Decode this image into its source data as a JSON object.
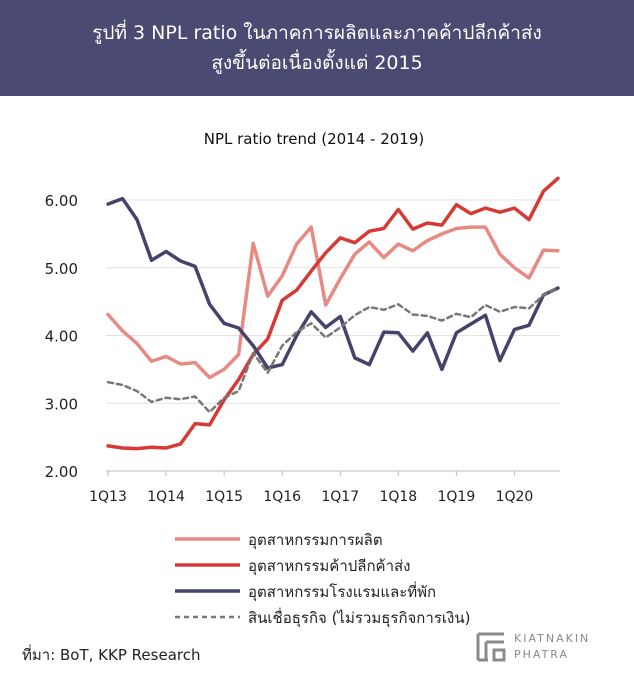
{
  "header": {
    "line1": "รูปที่ 3 NPL ratio ในภาคการผลิตและภาคค้าปลีกค้าส่ง",
    "line2": "สูงขึ้นต่อเนื่องตั้งแต่ 2015"
  },
  "source": "ที่มา: BoT, KKP Research",
  "logo": {
    "line1": "KIATNAKIN",
    "line2": "PHATRA"
  },
  "chart_data": {
    "type": "line",
    "title": "NPL ratio trend (2014 - 2019)",
    "xlabel": "",
    "ylabel": "",
    "ylim": [
      2.0,
      6.3
    ],
    "yticks": [
      2.0,
      3.0,
      4.0,
      5.0,
      6.0
    ],
    "ytick_labels": [
      "2.00",
      "3.00",
      "4.00",
      "5.00",
      "6.00"
    ],
    "x_tick_labels": [
      "1Q13",
      "1Q14",
      "1Q15",
      "1Q16",
      "1Q17",
      "1Q18",
      "1Q19",
      "1Q20"
    ],
    "x_tick_indices": [
      0,
      4,
      8,
      12,
      16,
      20,
      24,
      28
    ],
    "n_points": 32,
    "series": [
      {
        "name": "อุตสาหกรรมการผลิต",
        "color": "#e88a84",
        "dash": false,
        "values": [
          4.31,
          4.07,
          3.88,
          3.62,
          3.69,
          3.58,
          3.6,
          3.38,
          3.5,
          3.72,
          5.36,
          4.58,
          4.88,
          5.35,
          5.6,
          4.45,
          4.84,
          5.2,
          5.38,
          5.15,
          5.35,
          5.25,
          5.4,
          5.5,
          5.58,
          5.6,
          5.6,
          5.2,
          5.0,
          4.85,
          5.26,
          5.25
        ]
      },
      {
        "name": "อุตสาหกรรมค้าปลีกค้าส่ง",
        "color": "#d63a35",
        "dash": false,
        "values": [
          2.37,
          2.34,
          2.33,
          2.35,
          2.34,
          2.4,
          2.7,
          2.68,
          3.05,
          3.35,
          3.72,
          3.95,
          4.52,
          4.67,
          4.95,
          5.22,
          5.44,
          5.37,
          5.54,
          5.58,
          5.86,
          5.57,
          5.66,
          5.63,
          5.93,
          5.8,
          5.88,
          5.82,
          5.88,
          5.71,
          6.13,
          6.32
        ]
      },
      {
        "name": "อุตสาหกรรมโรงแรมและที่พัก",
        "color": "#44436b",
        "dash": false,
        "values": [
          5.94,
          6.02,
          5.71,
          5.11,
          5.24,
          5.1,
          5.02,
          4.46,
          4.18,
          4.11,
          3.85,
          3.52,
          3.57,
          4.0,
          4.35,
          4.12,
          4.28,
          3.67,
          3.57,
          4.05,
          4.04,
          3.77,
          4.04,
          3.5,
          4.04,
          4.17,
          4.3,
          3.63,
          4.09,
          4.15,
          4.6,
          4.7
        ]
      },
      {
        "name": "สินเชื่อธุรกิจ (ไม่รวมธุรกิจการเงิน)",
        "color": "#777777",
        "dash": true,
        "values": [
          3.31,
          3.27,
          3.18,
          3.02,
          3.08,
          3.06,
          3.1,
          2.87,
          3.08,
          3.18,
          3.74,
          3.45,
          3.85,
          4.05,
          4.18,
          3.97,
          4.12,
          4.3,
          4.42,
          4.38,
          4.46,
          4.31,
          4.29,
          4.22,
          4.32,
          4.27,
          4.45,
          4.35,
          4.42,
          4.4,
          4.6,
          4.7
        ]
      }
    ]
  }
}
